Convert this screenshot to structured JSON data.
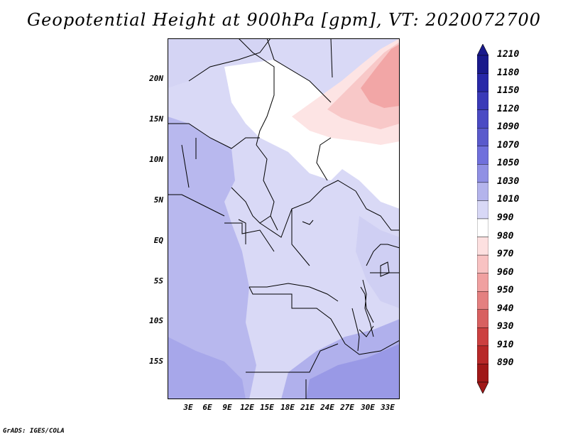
{
  "title": "Geopotential Height at 900hPa [gpm], VT: 2020072700",
  "credit": "GrADS: IGES/COLA",
  "map": {
    "lat_labels": [
      "20N",
      "15N",
      "10N",
      "5N",
      "EQ",
      "5S",
      "10S",
      "15S"
    ],
    "lon_labels": [
      "3E",
      "6E",
      "9E",
      "12E",
      "15E",
      "18E",
      "21E",
      "24E",
      "27E",
      "30E",
      "33E"
    ]
  },
  "colorbar": {
    "levels": [
      "1210",
      "1180",
      "1150",
      "1120",
      "1090",
      "1070",
      "1050",
      "1030",
      "1010",
      "990",
      "980",
      "970",
      "960",
      "950",
      "940",
      "930",
      "910",
      "890"
    ],
    "colors": [
      "#1a1a8c",
      "#2828a8",
      "#3a3ab8",
      "#4a4ac4",
      "#5a5acc",
      "#7070dc",
      "#9090e4",
      "#b4b4ec",
      "#d8d8f6",
      "#ffffff",
      "#fde0e0",
      "#f8c2c2",
      "#f0a0a0",
      "#e48080",
      "#d86060",
      "#cc4040",
      "#b82828",
      "#a01818"
    ]
  }
}
